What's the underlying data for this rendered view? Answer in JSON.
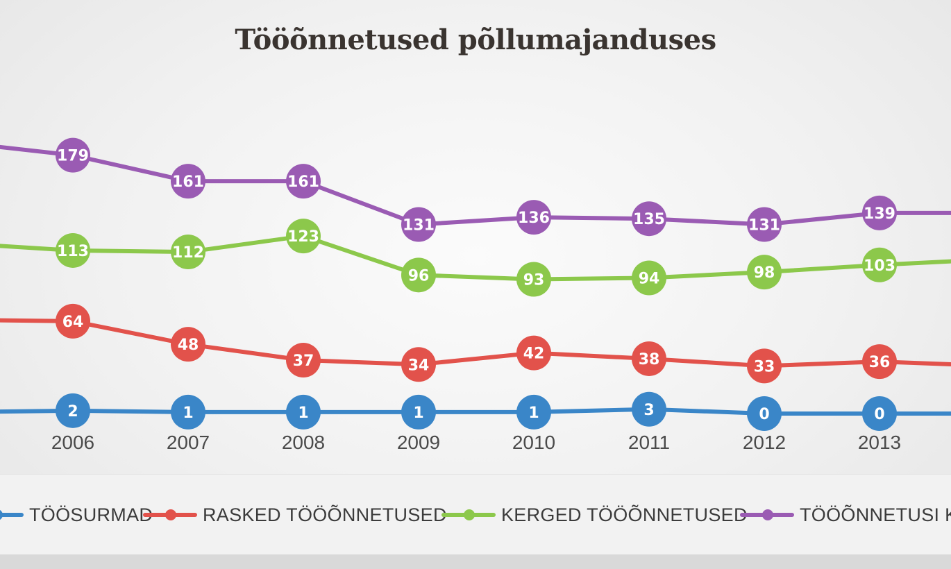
{
  "title": "Tööõnnetused põllumajanduses",
  "chart_data": {
    "type": "line",
    "title": "Tööõnnetused põllumajanduses",
    "categories": [
      "2006",
      "2007",
      "2008",
      "2009",
      "2010",
      "2011",
      "2012",
      "2013"
    ],
    "series": [
      {
        "name": "TÖÖSURMAD",
        "color": "#3a86c8",
        "values": [
          2,
          1,
          1,
          1,
          1,
          3,
          0,
          0
        ],
        "lead_in": 1,
        "lead_out": 0
      },
      {
        "name": "RASKED TÖÖÕNNETUSED",
        "color": "#e2524b",
        "values": [
          64,
          48,
          37,
          34,
          42,
          38,
          33,
          36
        ],
        "lead_in": 65,
        "lead_out": 33
      },
      {
        "name": "KERGED TÖÖÕNNETUSED",
        "color": "#8cc84b",
        "values": [
          113,
          112,
          123,
          96,
          93,
          94,
          98,
          103
        ],
        "lead_in": 118,
        "lead_out": 107
      },
      {
        "name": "TÖÖÕNNETUSI KO",
        "color": "#9a5bb3",
        "values": [
          179,
          161,
          161,
          131,
          136,
          135,
          131,
          139
        ],
        "lead_in": 188,
        "lead_out": 139
      }
    ],
    "grid": false,
    "legend_position": "bottom"
  }
}
